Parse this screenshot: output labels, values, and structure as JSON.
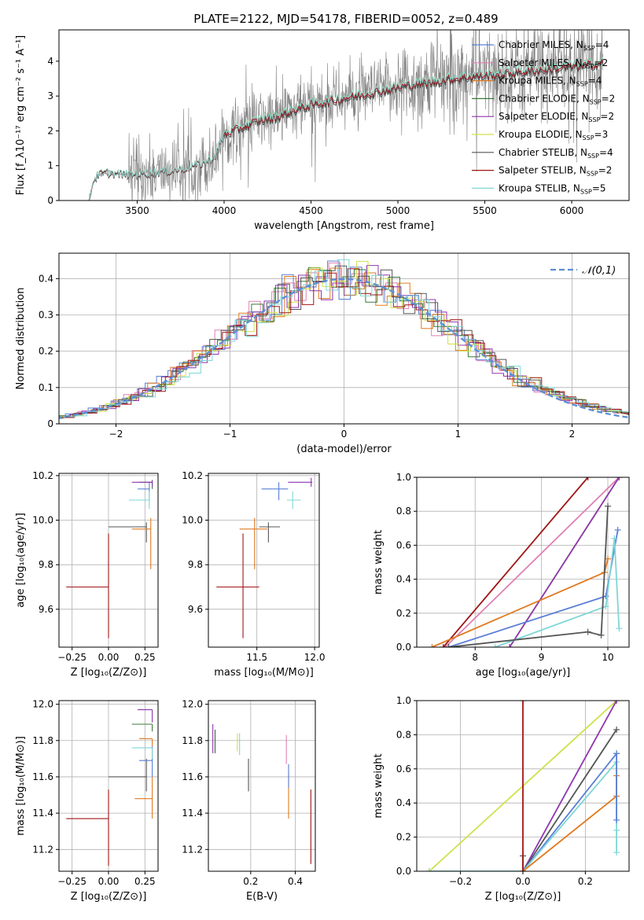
{
  "title": "PLATE=2122, MJD=54178, FIBERID=0052, z=0.489",
  "colors": {
    "chabrier_miles": "#5a7fd6",
    "salpeter_miles": "#e07fb4",
    "kroupa_miles": "#e07a20",
    "chabrier_elodie": "#3a7a3a",
    "salpeter_elodie": "#8e35b0",
    "kroupa_elodie": "#cfe14a",
    "chabrier_stelib": "#555555",
    "salpeter_stelib": "#a01515",
    "kroupa_stelib": "#7fd6d6",
    "data": "#808080",
    "normal": "#5a8fd6"
  },
  "chart_data": [
    {
      "id": "spectrum",
      "type": "line",
      "xlabel": "wavelength [Angstrom, rest frame]",
      "ylabel": "Flux [f_λ10⁻¹⁷ erg cm⁻² s⁻¹ A⁻¹]",
      "xlim": [
        3050,
        6330
      ],
      "ylim": [
        0,
        4.9
      ],
      "xticks": [
        3500,
        4000,
        4500,
        5000,
        5500,
        6000
      ],
      "yticks": [
        0,
        1,
        2,
        3,
        4
      ],
      "grid": false,
      "legend_placement": "top-right",
      "legend": [
        "Chabrier MILES, N_SSP=4",
        "Salpeter MILES, N_SSP=2",
        "Kroupa MILES, N_SSP=4",
        "Chabrier ELODIE, N_SSP=2",
        "Salpeter ELODIE, N_SSP=2",
        "Kroupa ELODIE, N_SSP=3",
        "Chabrier STELIB, N_SSP=4",
        "Salpeter STELIB, N_SSP=2",
        "Kroupa STELIB, N_SSP=5"
      ],
      "model_continuum": {
        "x": [
          3220,
          3250,
          3280,
          3320,
          3400,
          3500,
          3600,
          3700,
          3800,
          3900,
          3950,
          4000,
          4050,
          4100,
          4200,
          4300,
          4400,
          4500,
          4600,
          4700,
          4800,
          4900,
          5000,
          5100,
          5200,
          5300,
          5400,
          5500,
          5600,
          5700,
          5800,
          5900,
          6000,
          6100,
          6180
        ],
        "y": [
          0,
          0.6,
          0.75,
          0.8,
          0.75,
          0.75,
          0.8,
          0.85,
          0.95,
          1.1,
          1.3,
          1.9,
          2.0,
          2.1,
          2.3,
          2.4,
          2.6,
          2.75,
          2.85,
          2.95,
          3.05,
          3.15,
          3.25,
          3.35,
          3.4,
          3.5,
          3.55,
          3.6,
          3.65,
          3.7,
          3.75,
          3.8,
          3.85,
          3.9,
          3.95
        ]
      }
    },
    {
      "id": "residuals",
      "type": "histogram",
      "xlabel": "(data-model)/error",
      "ylabel": "Normed distribution",
      "xlim": [
        -2.5,
        2.5
      ],
      "ylim": [
        0,
        0.47
      ],
      "xticks": [
        -2,
        -1,
        0,
        1,
        2
      ],
      "yticks": [
        0.0,
        0.1,
        0.2,
        0.3,
        0.4
      ],
      "grid": true,
      "legend_placement": "top-right",
      "legend": [
        "𝒩(0,1)"
      ]
    },
    {
      "id": "age_vs_Z",
      "type": "errorbar",
      "xlabel": "Z [log₁₀(Z/Z⊙)]",
      "ylabel": "age  [log₁₀(age/yr)]",
      "xlim": [
        -0.34,
        0.34
      ],
      "ylim": [
        9.43,
        10.21
      ],
      "xticks": [
        -0.25,
        0.0,
        0.25
      ],
      "yticks": [
        9.6,
        9.8,
        10.0,
        10.2
      ],
      "grid": true,
      "points": [
        {
          "m": "salpeter_stelib",
          "x": 0.0,
          "y": 9.7,
          "xerr": [
            0.29,
            0.0
          ],
          "yerr": [
            0.23,
            0.24
          ]
        },
        {
          "m": "chabrier_stelib",
          "x": 0.26,
          "y": 9.97,
          "xerr": [
            0.26,
            0.0
          ],
          "yerr": [
            0.07,
            0.02
          ]
        },
        {
          "m": "kroupa_miles",
          "x": 0.29,
          "y": 9.96,
          "xerr": [
            0.13,
            0.0
          ],
          "yerr": [
            0.18,
            0.05
          ]
        },
        {
          "m": "chabrier_miles",
          "x": 0.28,
          "y": 10.14,
          "xerr": [
            0.08,
            0.0
          ],
          "yerr": [
            0.05,
            0.03
          ]
        },
        {
          "m": "kroupa_stelib",
          "x": 0.28,
          "y": 10.09,
          "xerr": [
            0.14,
            0.0
          ],
          "yerr": [
            0.04,
            0.04
          ]
        },
        {
          "m": "chabrier_elodie",
          "x": 0.3,
          "y": 10.17,
          "xerr": [
            0.09,
            0.0
          ],
          "yerr": [
            0.03,
            0.01
          ]
        },
        {
          "m": "salpeter_elodie",
          "x": 0.3,
          "y": 10.17,
          "xerr": [
            0.14,
            0.0
          ],
          "yerr": [
            0.02,
            0.01
          ]
        }
      ]
    },
    {
      "id": "age_vs_mass",
      "type": "errorbar",
      "xlabel": "mass [log₁₀(M/M⊙)]",
      "ylabel": "",
      "xlim": [
        11.08,
        12.04
      ],
      "ylim": [
        9.43,
        10.21
      ],
      "xticks": [
        11.5,
        12.0
      ],
      "yticks": [
        9.6,
        9.8,
        10.0,
        10.2
      ],
      "grid": true,
      "points": [
        {
          "m": "salpeter_stelib",
          "x": 11.38,
          "y": 9.7,
          "xerr": [
            0.23,
            0.14
          ],
          "yerr": [
            0.23,
            0.24
          ]
        },
        {
          "m": "kroupa_miles",
          "x": 11.48,
          "y": 9.96,
          "xerr": [
            0.13,
            0.11
          ],
          "yerr": [
            0.18,
            0.05
          ]
        },
        {
          "m": "chabrier_stelib",
          "x": 11.6,
          "y": 9.97,
          "xerr": [
            0.08,
            0.1
          ],
          "yerr": [
            0.07,
            0.02
          ]
        },
        {
          "m": "chabrier_miles",
          "x": 11.69,
          "y": 10.14,
          "xerr": [
            0.15,
            0.08
          ],
          "yerr": [
            0.05,
            0.03
          ]
        },
        {
          "m": "kroupa_stelib",
          "x": 11.81,
          "y": 10.09,
          "xerr": [
            0.05,
            0.07
          ],
          "yerr": [
            0.04,
            0.04
          ]
        },
        {
          "m": "salpeter_elodie",
          "x": 11.97,
          "y": 10.17,
          "xerr": [
            0.2,
            0.01
          ],
          "yerr": [
            0.02,
            0.02
          ]
        }
      ]
    },
    {
      "id": "weight_vs_age",
      "type": "line",
      "xlabel": "age  [log₁₀(age/yr)]",
      "ylabel": "mass weight",
      "xlim": [
        7.12,
        10.32
      ],
      "ylim": [
        0,
        1
      ],
      "xticks": [
        8,
        9,
        10
      ],
      "yticks": [
        0.0,
        0.2,
        0.4,
        0.6,
        0.8,
        1.0
      ],
      "grid": true,
      "series": [
        {
          "m": "salpeter_miles",
          "x": [
            7.55,
            10.17
          ],
          "y": [
            0.0,
            1.0
          ]
        },
        {
          "m": "salpeter_stelib",
          "x": [
            7.52,
            9.7
          ],
          "y": [
            0.0,
            1.0
          ]
        },
        {
          "m": "kroupa_elodie",
          "x": [
            8.52,
            10.17
          ],
          "y": [
            0.0,
            1.0
          ]
        },
        {
          "m": "salpeter_elodie",
          "x": [
            8.52,
            10.17
          ],
          "y": [
            0.0,
            1.0
          ]
        },
        {
          "m": "kroupa_miles",
          "x": [
            7.35,
            9.95,
            10.0
          ],
          "y": [
            0.0,
            0.44,
            0.52
          ]
        },
        {
          "m": "chabrier_miles",
          "x": [
            7.6,
            9.97,
            10.15
          ],
          "y": [
            0.0,
            0.3,
            0.69
          ]
        },
        {
          "m": "kroupa_stelib",
          "x": [
            8.3,
            9.97,
            10.1,
            10.17
          ],
          "y": [
            0.0,
            0.24,
            0.64,
            0.11
          ]
        },
        {
          "m": "chabrier_stelib",
          "x": [
            7.6,
            9.7,
            9.9,
            10.0
          ],
          "y": [
            0.0,
            0.09,
            0.07,
            0.83
          ]
        }
      ]
    },
    {
      "id": "mass_vs_Z",
      "type": "errorbar",
      "xlabel": "Z [log₁₀(Z/Z⊙)]",
      "ylabel": "mass [log₁₀(M/M⊙)]",
      "xlim": [
        -0.34,
        0.34
      ],
      "ylim": [
        11.08,
        12.02
      ],
      "xticks": [
        -0.25,
        0.0,
        0.25
      ],
      "yticks": [
        11.2,
        11.4,
        11.6,
        11.8,
        12.0
      ],
      "grid": true,
      "points": [
        {
          "m": "salpeter_stelib",
          "x": 0.0,
          "y": 11.37,
          "xerr": [
            0.29,
            0.0
          ],
          "yerr": [
            0.26,
            0.16
          ]
        },
        {
          "m": "chabrier_stelib",
          "x": 0.26,
          "y": 11.6,
          "xerr": [
            0.26,
            0.0
          ],
          "yerr": [
            0.08,
            0.1
          ]
        },
        {
          "m": "kroupa_miles",
          "x": 0.3,
          "y": 11.48,
          "xerr": [
            0.12,
            0.0
          ],
          "yerr": [
            0.11,
            0.12
          ]
        },
        {
          "m": "chabrier_miles",
          "x": 0.3,
          "y": 11.69,
          "xerr": [
            0.09,
            0.0
          ],
          "yerr": [
            0.09,
            0.08
          ]
        },
        {
          "m": "kroupa_miles",
          "x": 0.3,
          "y": 11.81,
          "xerr": [
            0.09,
            0.0
          ],
          "yerr": [
            0.04,
            0.0
          ]
        },
        {
          "m": "kroupa_stelib",
          "x": 0.3,
          "y": 11.76,
          "xerr": [
            0.14,
            0.0
          ],
          "yerr": [
            0.06,
            0.0
          ]
        },
        {
          "m": "chabrier_elodie",
          "x": 0.3,
          "y": 11.89,
          "xerr": [
            0.14,
            0.0
          ],
          "yerr": [
            0.04,
            0.0
          ]
        },
        {
          "m": "salpeter_elodie",
          "x": 0.3,
          "y": 11.97,
          "xerr": [
            0.1,
            0.0
          ],
          "yerr": [
            0.07,
            0.0
          ]
        }
      ]
    },
    {
      "id": "mass_vs_ebv",
      "type": "errorbar",
      "xlabel": "E(B-V)",
      "ylabel": "",
      "xlim": [
        0.01,
        0.49
      ],
      "ylim": [
        11.08,
        12.02
      ],
      "xticks": [
        0.2,
        0.4
      ],
      "yticks": [
        11.2,
        11.4,
        11.6,
        11.8,
        12.0
      ],
      "grid": true,
      "points": [
        {
          "m": "salpeter_elodie",
          "x": 0.03,
          "y": 11.8,
          "xerr": [
            0,
            0
          ],
          "yerr": [
            0.07,
            0.09
          ]
        },
        {
          "m": "chabrier_stelib",
          "x": 0.04,
          "y": 11.8,
          "xerr": [
            0,
            0
          ],
          "yerr": [
            0.07,
            0.06
          ]
        },
        {
          "m": "kroupa_elodie",
          "x": 0.14,
          "y": 11.79,
          "xerr": [
            0,
            0
          ],
          "yerr": [
            0.05,
            0.05
          ]
        },
        {
          "m": "kroupa_stelib",
          "x": 0.15,
          "y": 11.78,
          "xerr": [
            0,
            0
          ],
          "yerr": [
            0.06,
            0.06
          ]
        },
        {
          "m": "chabrier_stelib",
          "x": 0.19,
          "y": 11.6,
          "xerr": [
            0,
            0
          ],
          "yerr": [
            0.08,
            0.1
          ]
        },
        {
          "m": "salpeter_miles",
          "x": 0.36,
          "y": 11.75,
          "xerr": [
            0,
            0
          ],
          "yerr": [
            0.08,
            0.08
          ]
        },
        {
          "m": "kroupa_miles",
          "x": 0.37,
          "y": 11.5,
          "xerr": [
            0,
            0
          ],
          "yerr": [
            0.13,
            0.12
          ]
        },
        {
          "m": "chabrier_miles",
          "x": 0.37,
          "y": 11.62,
          "xerr": [
            0,
            0
          ],
          "yerr": [
            0.08,
            0.05
          ]
        },
        {
          "m": "salpeter_stelib",
          "x": 0.47,
          "y": 11.33,
          "xerr": [
            0,
            0
          ],
          "yerr": [
            0.21,
            0.2
          ]
        }
      ]
    },
    {
      "id": "weight_vs_Z",
      "type": "line",
      "xlabel": "Z [log₁₀(Z/Z⊙)]",
      "ylabel": "mass weight",
      "xlim": [
        -0.34,
        0.34
      ],
      "ylim": [
        0,
        1
      ],
      "xticks": [
        -0.2,
        0.0,
        0.2
      ],
      "yticks": [
        0.0,
        0.2,
        0.4,
        0.6,
        0.8,
        1.0
      ],
      "grid": true,
      "series": [
        {
          "m": "kroupa_elodie",
          "x": [
            -0.3,
            0.3
          ],
          "y": [
            0.0,
            1.0
          ]
        },
        {
          "m": "salpeter_elodie",
          "x": [
            0.0,
            0.3
          ],
          "y": [
            0.0,
            1.0
          ]
        },
        {
          "m": "chabrier_stelib",
          "x": [
            0.0,
            0.0,
            0.3
          ],
          "y": [
            0.09,
            0.0,
            0.83
          ]
        },
        {
          "m": "chabrier_miles",
          "x": [
            0.0,
            0.3
          ],
          "y": [
            0.0,
            0.69
          ]
        },
        {
          "m": "kroupa_stelib",
          "x": [
            -0.3,
            0.0,
            0.3,
            0.3,
            0.3
          ],
          "y": [
            0.0,
            0.0,
            0.64,
            0.24,
            0.11
          ]
        },
        {
          "m": "kroupa_miles",
          "x": [
            0.0,
            0.3,
            0.3
          ],
          "y": [
            0.0,
            0.44,
            0.56
          ]
        },
        {
          "m": "salpeter_stelib",
          "x": [
            0.0,
            0.0
          ],
          "y": [
            0.0,
            1.0
          ]
        },
        {
          "m": "chabrier_miles",
          "x": [
            0.3,
            0.3
          ],
          "y": [
            0.3,
            0.69
          ]
        }
      ]
    }
  ]
}
